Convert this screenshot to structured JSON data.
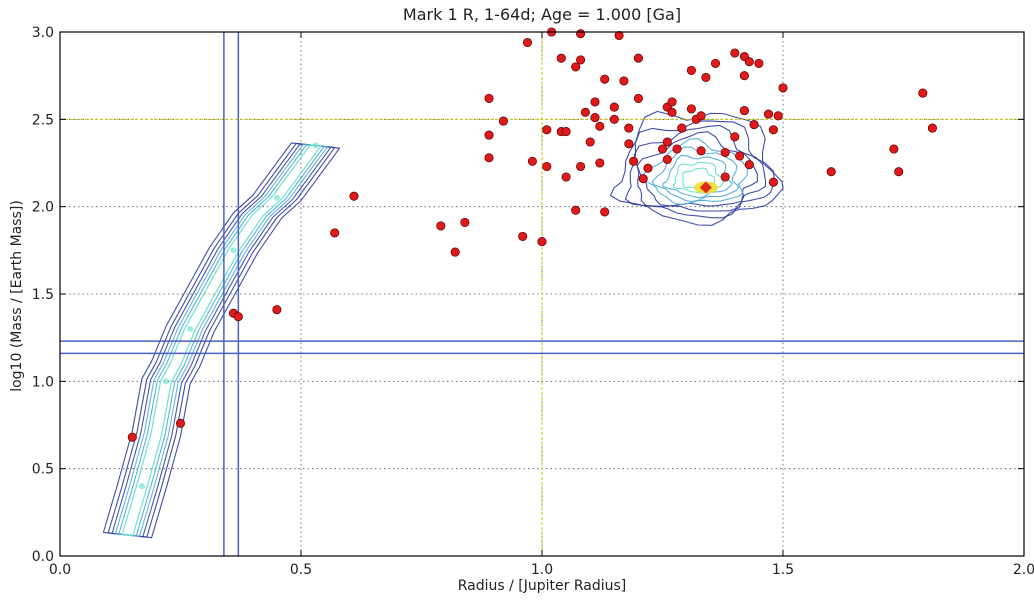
{
  "chart_data": {
    "type": "scatter",
    "title": "Mark 1 R, 1-64d;  Age = 1.000 [Ga]",
    "xlabel": "Radius / [Jupiter Radius]",
    "ylabel": "log10 (Mass / [Earth Mass])",
    "xlim": [
      0.0,
      2.0
    ],
    "ylim": [
      0.0,
      3.0
    ],
    "xticks": [
      0.0,
      0.5,
      1.0,
      1.5,
      2.0
    ],
    "xtick_labels": [
      "0.0",
      "0.5",
      "1.0",
      "1.5",
      "2.0"
    ],
    "yticks": [
      0.0,
      0.5,
      1.0,
      1.5,
      2.0,
      2.5,
      3.0
    ],
    "ytick_labels": [
      "0.0",
      "0.5",
      "1.0",
      "1.5",
      "2.0",
      "2.5",
      "3.0"
    ],
    "grid": true,
    "reference_lines": {
      "jupiter": {
        "x": 1.0,
        "y": 2.5,
        "color": "#c8c800"
      },
      "band_vertical": [
        0.34,
        0.37
      ],
      "band_horizontal": [
        1.16,
        1.23
      ],
      "band_color": "#4c5fc7"
    },
    "colors": {
      "points": "#e01a1a",
      "contour_outer": "#2e3a9e",
      "contour_mid": "#4aa9d8",
      "contour_high": "#5ee0c8",
      "peak": "#f2e040",
      "core": "#e0281a"
    },
    "observed_planets": [
      [
        0.15,
        0.68
      ],
      [
        0.25,
        0.76
      ],
      [
        0.36,
        1.39
      ],
      [
        0.37,
        1.37
      ],
      [
        0.45,
        1.41
      ],
      [
        0.57,
        1.85
      ],
      [
        0.61,
        2.06
      ],
      [
        0.79,
        1.89
      ],
      [
        0.82,
        1.74
      ],
      [
        0.84,
        1.91
      ],
      [
        0.89,
        2.62
      ],
      [
        0.89,
        2.41
      ],
      [
        0.89,
        2.28
      ],
      [
        0.92,
        2.49
      ],
      [
        0.96,
        1.83
      ],
      [
        0.97,
        2.94
      ],
      [
        0.98,
        2.26
      ],
      [
        1.0,
        1.8
      ],
      [
        1.01,
        2.44
      ],
      [
        1.01,
        2.23
      ],
      [
        1.02,
        3.0
      ],
      [
        1.04,
        2.85
      ],
      [
        1.04,
        2.43
      ],
      [
        1.05,
        2.43
      ],
      [
        1.05,
        2.17
      ],
      [
        1.07,
        2.8
      ],
      [
        1.07,
        1.98
      ],
      [
        1.08,
        2.99
      ],
      [
        1.08,
        2.84
      ],
      [
        1.08,
        2.23
      ],
      [
        1.09,
        2.54
      ],
      [
        1.1,
        2.37
      ],
      [
        1.11,
        2.51
      ],
      [
        1.11,
        2.6
      ],
      [
        1.12,
        2.25
      ],
      [
        1.12,
        2.46
      ],
      [
        1.13,
        2.73
      ],
      [
        1.13,
        1.97
      ],
      [
        1.15,
        2.57
      ],
      [
        1.15,
        2.5
      ],
      [
        1.16,
        2.98
      ],
      [
        1.17,
        2.72
      ],
      [
        1.18,
        2.45
      ],
      [
        1.18,
        2.36
      ],
      [
        1.19,
        2.26
      ],
      [
        1.2,
        2.62
      ],
      [
        1.2,
        2.85
      ],
      [
        1.21,
        2.16
      ],
      [
        1.22,
        2.22
      ],
      [
        1.25,
        2.33
      ],
      [
        1.26,
        2.57
      ],
      [
        1.26,
        2.37
      ],
      [
        1.26,
        2.27
      ],
      [
        1.27,
        2.6
      ],
      [
        1.27,
        2.54
      ],
      [
        1.28,
        2.33
      ],
      [
        1.29,
        2.45
      ],
      [
        1.31,
        2.78
      ],
      [
        1.31,
        2.56
      ],
      [
        1.32,
        2.5
      ],
      [
        1.33,
        2.52
      ],
      [
        1.33,
        2.32
      ],
      [
        1.34,
        2.74
      ],
      [
        1.36,
        2.82
      ],
      [
        1.38,
        2.31
      ],
      [
        1.38,
        2.17
      ],
      [
        1.4,
        2.88
      ],
      [
        1.4,
        2.4
      ],
      [
        1.41,
        2.29
      ],
      [
        1.42,
        2.55
      ],
      [
        1.42,
        2.75
      ],
      [
        1.42,
        2.86
      ],
      [
        1.43,
        2.83
      ],
      [
        1.43,
        2.24
      ],
      [
        1.44,
        2.47
      ],
      [
        1.45,
        2.82
      ],
      [
        1.47,
        2.53
      ],
      [
        1.48,
        2.44
      ],
      [
        1.48,
        2.14
      ],
      [
        1.49,
        2.52
      ],
      [
        1.5,
        2.68
      ],
      [
        1.6,
        2.2
      ],
      [
        1.73,
        2.33
      ],
      [
        1.74,
        2.2
      ],
      [
        1.79,
        2.65
      ],
      [
        1.81,
        2.45
      ]
    ],
    "population_ridge_path": [
      [
        0.14,
        0.12
      ],
      [
        0.17,
        0.4
      ],
      [
        0.2,
        0.7
      ],
      [
        0.22,
        1.0
      ],
      [
        0.24,
        1.1
      ],
      [
        0.27,
        1.3
      ],
      [
        0.31,
        1.5
      ],
      [
        0.36,
        1.75
      ],
      [
        0.41,
        1.95
      ],
      [
        0.45,
        2.05
      ],
      [
        0.49,
        2.2
      ],
      [
        0.53,
        2.35
      ]
    ],
    "population_cluster_center": [
      1.34,
      2.11
    ]
  }
}
